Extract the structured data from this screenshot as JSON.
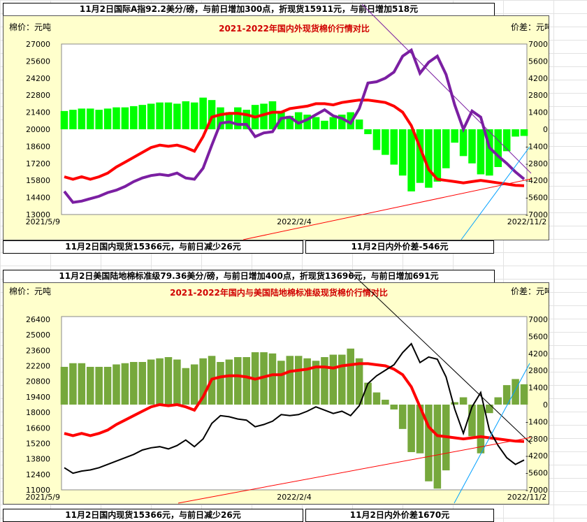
{
  "charts": [
    {
      "banner_top": "11月2日国际A指92.2美分/磅，与前日增加300点，折现货15911元，与前日增加518元",
      "banner_bottom_left": "11月2日国内现货15366元，与前日减少26元",
      "banner_bottom_right": "11月2日内外价差-546元",
      "colors": {
        "bars": "#00ff00",
        "domestic": "#ff0000",
        "foreign": "#7b1fa2",
        "bg": "#ffffcc"
      }
    },
    {
      "banner_top": "11月2日美国陆地棉标准级79.36美分/磅，与前日增加400点，折现货13696元，与前日增加691元",
      "banner_bottom_left": "11月2日国内现货15366元，与前日减少26元",
      "banner_bottom_right": "11月2日内外价差1670元",
      "colors": {
        "bars": "#76a83c",
        "domestic": "#ff0000",
        "foreign": "#000000",
        "bg": "#ffffcc"
      }
    }
  ],
  "chart_data": [
    {
      "type": "line",
      "title": "2021-2022年国内外现货棉价行情对比",
      "ylabel": "棉价：元吨",
      "y2label": "价差：元吨",
      "y_ticks": [
        27000,
        25600,
        24200,
        22800,
        21400,
        20000,
        18600,
        17200,
        15800,
        14400,
        13000
      ],
      "y2_ticks": [
        7000,
        5600,
        4200,
        2800,
        1400,
        0,
        -1400,
        -2800,
        -4200,
        -5600,
        -7000
      ],
      "ylim": [
        13000,
        27000
      ],
      "y2lim": [
        -7000,
        7000
      ],
      "x_tick_labels": [
        "2021/5/9",
        "2022/2/4",
        "2022/11/2"
      ],
      "series": [
        {
          "values": [
            16100,
            15900,
            16100,
            15900,
            16100,
            16400,
            16900,
            17300,
            17700,
            18100,
            18500,
            18700,
            18600,
            18700,
            18500,
            18200,
            19400,
            21000,
            21200,
            21300,
            21300,
            21200,
            21000,
            21200,
            21400,
            21400,
            21700,
            21800,
            21900,
            22100,
            22100,
            22000,
            22200,
            22300,
            22400,
            22400,
            22300,
            22200,
            21900,
            21400,
            20300,
            18500,
            16700,
            15900,
            15800,
            15700,
            15600,
            15700,
            15800,
            15700,
            15600,
            15500,
            15400,
            15366
          ]
        },
        {
          "values": [
            14900,
            14000,
            14100,
            14300,
            14500,
            14800,
            15000,
            15300,
            15700,
            16000,
            16200,
            16300,
            16200,
            16400,
            16000,
            15900,
            16800,
            18700,
            20500,
            20600,
            20400,
            20400,
            19400,
            19700,
            19800,
            20900,
            21000,
            20500,
            20800,
            21200,
            21600,
            21100,
            20900,
            20500,
            21700,
            23800,
            23900,
            24200,
            24700,
            26000,
            26500,
            24600,
            25500,
            26000,
            24500,
            22000,
            20000,
            21500,
            21000,
            18500,
            17800,
            17200,
            16500,
            15911
          ]
        },
        {
          "values": [
            1500,
            1600,
            1700,
            1700,
            1600,
            1700,
            1800,
            1800,
            1900,
            2000,
            2100,
            2200,
            2200,
            2100,
            2300,
            2200,
            2600,
            2400,
            1800,
            1400,
            1800,
            1600,
            2000,
            2100,
            2300,
            1400,
            1100,
            1400,
            1200,
            1000,
            700,
            1000,
            1200,
            1400,
            800,
            -400,
            -1700,
            -2100,
            -2900,
            -3800,
            -5100,
            -4400,
            -4800,
            -4300,
            -3200,
            -1100,
            -2200,
            -2800,
            -3700,
            -3800,
            -3100,
            -1800,
            -600,
            -546
          ]
        }
      ]
    },
    {
      "type": "line",
      "title": "2021-2022年国内与美国陆地棉标准级现货棉价行情对比",
      "ylabel": "棉价：元吨",
      "y2label": "价差：元吨",
      "y_ticks": [
        26400,
        25000,
        23600,
        22200,
        20800,
        19400,
        18000,
        16600,
        15200,
        13800,
        12400,
        11000
      ],
      "y2_ticks": [
        7000,
        5600,
        4200,
        2800,
        1400,
        0,
        -1400,
        -2800,
        -4200,
        -5600,
        -7000
      ],
      "ylim": [
        11000,
        26400
      ],
      "y2lim": [
        -7000,
        7000
      ],
      "x_tick_labels": [
        "2021/5/9",
        "2022/2/4",
        "2022/11/2"
      ],
      "series": [
        {
          "values": [
            16100,
            15900,
            16100,
            15900,
            16100,
            16400,
            16900,
            17300,
            17700,
            18100,
            18500,
            18700,
            18600,
            18700,
            18500,
            18200,
            19400,
            21000,
            21200,
            21300,
            21300,
            21200,
            21000,
            21200,
            21400,
            21400,
            21700,
            21800,
            21900,
            22100,
            22100,
            22000,
            22200,
            22300,
            22400,
            22400,
            22300,
            22200,
            21900,
            21400,
            20300,
            18500,
            16700,
            15900,
            15800,
            15700,
            15600,
            15700,
            15800,
            15700,
            15600,
            15500,
            15400,
            15366
          ]
        },
        {
          "values": [
            13000,
            12500,
            12700,
            12800,
            13000,
            13300,
            13600,
            13900,
            14200,
            14600,
            14800,
            14900,
            14700,
            15000,
            15500,
            14900,
            15600,
            17000,
            17700,
            17600,
            17400,
            17300,
            16700,
            16900,
            17200,
            17800,
            17700,
            17800,
            18100,
            18500,
            18200,
            17900,
            18100,
            17700,
            18600,
            20600,
            21300,
            21800,
            22300,
            23400,
            24200,
            22500,
            23000,
            22800,
            21200,
            18300,
            16100,
            18500,
            19800,
            16400,
            15000,
            13900,
            13300,
            13696
          ]
        },
        {
          "values": [
            3100,
            3400,
            3400,
            3100,
            3100,
            3100,
            3300,
            3400,
            3500,
            3500,
            3700,
            3800,
            3900,
            3700,
            3000,
            3300,
            3800,
            4000,
            3500,
            3700,
            3900,
            3900,
            4300,
            4300,
            4200,
            3600,
            4000,
            4000,
            3800,
            3600,
            3900,
            4100,
            4100,
            4600,
            3800,
            1800,
            1000,
            400,
            -400,
            -2000,
            -3900,
            -4000,
            -6300,
            -6900,
            -5400,
            200,
            600,
            -2600,
            -4000,
            -700,
            600,
            1600,
            2100,
            1670
          ]
        }
      ]
    }
  ]
}
